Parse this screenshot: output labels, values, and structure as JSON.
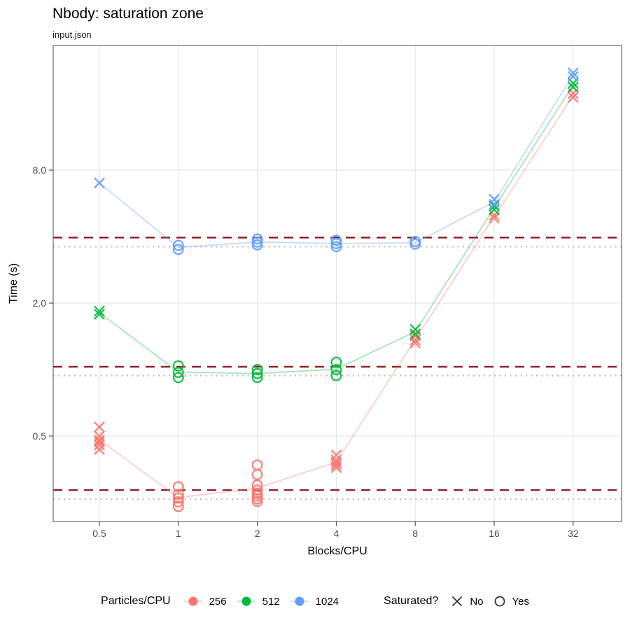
{
  "title": "Nbody: saturation zone",
  "subtitle": "input.json",
  "chart_data": {
    "type": "scatter",
    "title": "Nbody: saturation zone",
    "subtitle": "input.json",
    "xlabel": "Blocks/CPU",
    "ylabel": "Time (s)",
    "x_scale": "log2",
    "y_scale": "log2",
    "x_ticks": [
      0.5,
      1,
      2,
      4,
      8,
      16,
      32
    ],
    "x_tick_labels": [
      "0.5",
      "1",
      "2",
      "4",
      "8",
      "16",
      "32"
    ],
    "y_ticks": [
      0.5,
      2.0,
      8.0
    ],
    "y_tick_labels": [
      "0.5",
      "2.0",
      "8.0"
    ],
    "x_range": [
      0.33,
      48
    ],
    "y_range": [
      0.2,
      30
    ],
    "grid": true,
    "series": [
      {
        "name": "256",
        "color": "#F8766D",
        "groups": [
          {
            "x": 0.5,
            "saturated": "No",
            "times": [
              0.55,
              0.5,
              0.48,
              0.47,
              0.455,
              0.435
            ]
          },
          {
            "x": 1,
            "saturated": "Yes",
            "times": [
              0.295,
              0.272,
              0.262,
              0.252,
              0.24
            ]
          },
          {
            "x": 2,
            "saturated": "Yes",
            "times": [
              0.37,
              0.335,
              0.3,
              0.285,
              0.275,
              0.268,
              0.26,
              0.253
            ]
          },
          {
            "x": 4,
            "saturated": "No",
            "times": [
              0.41,
              0.39,
              0.38,
              0.37,
              0.36
            ]
          },
          {
            "x": 8,
            "saturated": "No",
            "times": [
              1.42,
              1.36,
              1.32
            ]
          },
          {
            "x": 16,
            "saturated": "No",
            "times": [
              5.0,
              4.85
            ]
          },
          {
            "x": 32,
            "saturated": "No",
            "times": [
              17.8,
              17.1
            ]
          }
        ]
      },
      {
        "name": "512",
        "color": "#00BA38",
        "groups": [
          {
            "x": 0.5,
            "saturated": "No",
            "times": [
              1.84,
              1.78
            ]
          },
          {
            "x": 1,
            "saturated": "Yes",
            "times": [
              1.04,
              0.97,
              0.92
            ]
          },
          {
            "x": 2,
            "saturated": "Yes",
            "times": [
              1.0,
              0.96,
              0.92
            ]
          },
          {
            "x": 4,
            "saturated": "Yes",
            "times": [
              1.08,
              1.0,
              0.94
            ]
          },
          {
            "x": 8,
            "saturated": "No",
            "times": [
              1.52,
              1.45
            ]
          },
          {
            "x": 16,
            "saturated": "No",
            "times": [
              5.5,
              5.3
            ]
          },
          {
            "x": 32,
            "saturated": "No",
            "times": [
              19.8,
              19.0
            ]
          }
        ]
      },
      {
        "name": "1024",
        "color": "#619CFF",
        "groups": [
          {
            "x": 0.5,
            "saturated": "No",
            "times": [
              7.0
            ]
          },
          {
            "x": 1,
            "saturated": "Yes",
            "times": [
              3.65,
              3.5
            ]
          },
          {
            "x": 2,
            "saturated": "Yes",
            "times": [
              3.9,
              3.78,
              3.67
            ]
          },
          {
            "x": 4,
            "saturated": "Yes",
            "times": [
              3.85,
              3.72,
              3.6
            ]
          },
          {
            "x": 8,
            "saturated": "Yes",
            "times": [
              3.8,
              3.7
            ]
          },
          {
            "x": 16,
            "saturated": "No",
            "times": [
              5.9,
              5.6
            ]
          },
          {
            "x": 32,
            "saturated": "No",
            "times": [
              22.0,
              21.2
            ]
          }
        ]
      }
    ],
    "reference_lines": [
      {
        "style": "dashed",
        "color": "#8E2026",
        "values": [
          3.96,
          1.03,
          0.285
        ]
      },
      {
        "style": "dotted",
        "color": "#BDBDBD",
        "values": [
          3.6,
          0.94,
          0.259
        ]
      }
    ],
    "legend": {
      "position": "bottom",
      "color_title": "Particles/CPU",
      "color_items": [
        {
          "label": "256",
          "color": "#F8766D"
        },
        {
          "label": "512",
          "color": "#00BA38"
        },
        {
          "label": "1024",
          "color": "#619CFF"
        }
      ],
      "shape_title": "Saturated?",
      "shape_items": [
        {
          "label": "No",
          "shape": "x"
        },
        {
          "label": "Yes",
          "shape": "circle"
        }
      ]
    },
    "colors": {
      "grid": "#E3E3E3",
      "panel_border": "#4D4D4D",
      "tick_text": "#4D4D4D"
    }
  }
}
